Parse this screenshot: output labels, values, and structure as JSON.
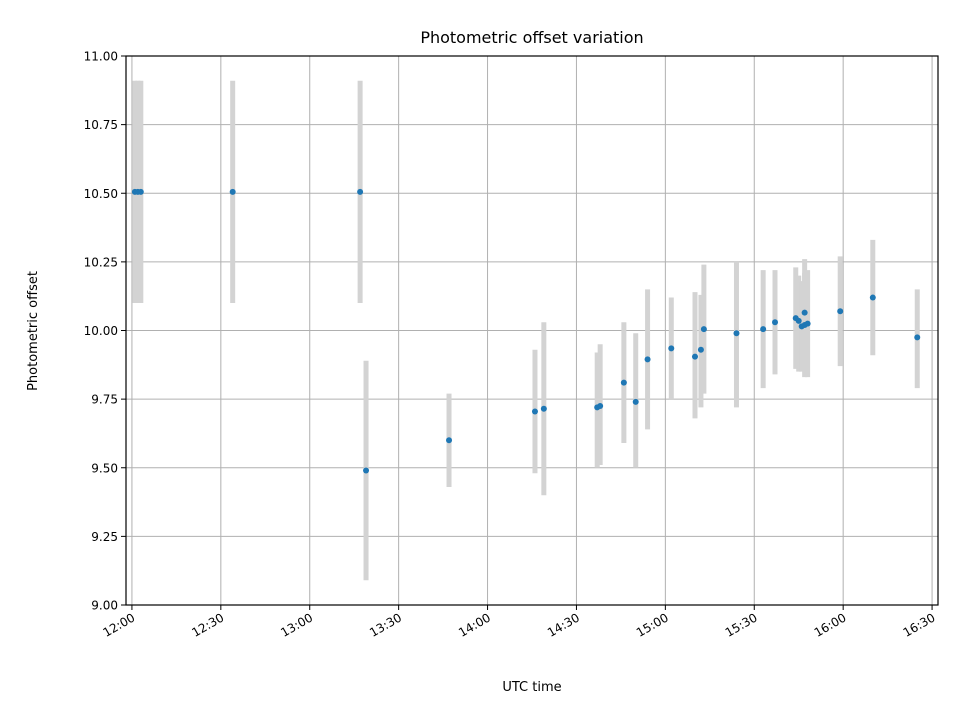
{
  "chart_data": {
    "type": "scatter",
    "title": "Photometric offset variation",
    "xlabel": "UTC time",
    "ylabel": "Photometric offset",
    "x_axis_type": "time",
    "xlim": [
      "11:58",
      "16:32"
    ],
    "ylim": [
      9.0,
      11.0
    ],
    "x_ticks": [
      "12:00",
      "12:30",
      "13:00",
      "13:30",
      "14:00",
      "14:30",
      "15:00",
      "15:30",
      "16:00",
      "16:30"
    ],
    "y_ticks": [
      "9.00",
      "9.25",
      "9.50",
      "9.75",
      "10.00",
      "10.25",
      "10.50",
      "10.75",
      "11.00"
    ],
    "grid": true,
    "marker_color": "#1f77b4",
    "errorbar_color": "#d3d3d3",
    "points": [
      {
        "x": "12:01",
        "y": 10.505,
        "ylow": 10.1,
        "yhigh": 10.91
      },
      {
        "x": "12:02",
        "y": 10.505,
        "ylow": 10.1,
        "yhigh": 10.91
      },
      {
        "x": "12:03",
        "y": 10.505,
        "ylow": 10.1,
        "yhigh": 10.91
      },
      {
        "x": "12:34",
        "y": 10.505,
        "ylow": 10.1,
        "yhigh": 10.91
      },
      {
        "x": "13:17",
        "y": 10.505,
        "ylow": 10.1,
        "yhigh": 10.91
      },
      {
        "x": "13:19",
        "y": 9.49,
        "ylow": 9.09,
        "yhigh": 9.89
      },
      {
        "x": "13:47",
        "y": 9.6,
        "ylow": 9.43,
        "yhigh": 9.77
      },
      {
        "x": "14:16",
        "y": 9.705,
        "ylow": 9.48,
        "yhigh": 9.93
      },
      {
        "x": "14:19",
        "y": 9.715,
        "ylow": 9.4,
        "yhigh": 10.03
      },
      {
        "x": "14:37",
        "y": 9.72,
        "ylow": 9.5,
        "yhigh": 9.92
      },
      {
        "x": "14:38",
        "y": 9.725,
        "ylow": 9.51,
        "yhigh": 9.95
      },
      {
        "x": "14:46",
        "y": 9.81,
        "ylow": 9.59,
        "yhigh": 10.03
      },
      {
        "x": "14:50",
        "y": 9.74,
        "ylow": 9.5,
        "yhigh": 9.99
      },
      {
        "x": "14:54",
        "y": 9.895,
        "ylow": 9.64,
        "yhigh": 10.15
      },
      {
        "x": "15:02",
        "y": 9.935,
        "ylow": 9.75,
        "yhigh": 10.12
      },
      {
        "x": "15:10",
        "y": 9.905,
        "ylow": 9.68,
        "yhigh": 10.14
      },
      {
        "x": "15:12",
        "y": 9.93,
        "ylow": 9.72,
        "yhigh": 10.13
      },
      {
        "x": "15:13",
        "y": 10.005,
        "ylow": 9.77,
        "yhigh": 10.24
      },
      {
        "x": "15:24",
        "y": 9.99,
        "ylow": 9.72,
        "yhigh": 10.25
      },
      {
        "x": "15:33",
        "y": 10.005,
        "ylow": 9.79,
        "yhigh": 10.22
      },
      {
        "x": "15:37",
        "y": 10.03,
        "ylow": 9.84,
        "yhigh": 10.22
      },
      {
        "x": "15:44",
        "y": 10.045,
        "ylow": 9.86,
        "yhigh": 10.23
      },
      {
        "x": "15:45",
        "y": 10.035,
        "ylow": 9.85,
        "yhigh": 10.2
      },
      {
        "x": "15:46",
        "y": 10.015,
        "ylow": 9.85,
        "yhigh": 10.18
      },
      {
        "x": "15:47",
        "y": 10.065,
        "ylow": 9.86,
        "yhigh": 10.26
      },
      {
        "x": "15:47",
        "y": 10.02,
        "ylow": 9.83,
        "yhigh": 10.21
      },
      {
        "x": "15:48",
        "y": 10.025,
        "ylow": 9.83,
        "yhigh": 10.22
      },
      {
        "x": "15:59",
        "y": 10.07,
        "ylow": 9.87,
        "yhigh": 10.27
      },
      {
        "x": "16:10",
        "y": 10.12,
        "ylow": 9.91,
        "yhigh": 10.33
      },
      {
        "x": "16:25",
        "y": 9.975,
        "ylow": 9.79,
        "yhigh": 10.15
      }
    ]
  }
}
